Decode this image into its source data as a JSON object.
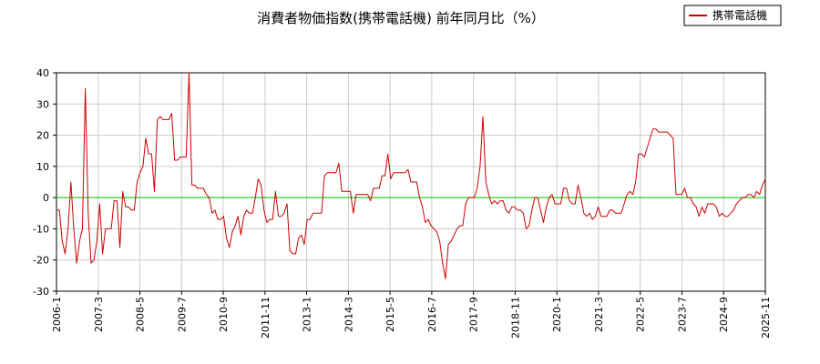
{
  "chart_data": {
    "type": "line",
    "title": "消費者物価指数(携帯電話機) 前年同月比（%）",
    "xlabel": "",
    "ylabel": "",
    "ylim": [
      -30,
      40
    ],
    "yticks": [
      40,
      30,
      20,
      10,
      0,
      -10,
      -20,
      -30
    ],
    "xtick_labels": [
      "2006-1",
      "2007-3",
      "2008-5",
      "2009-7",
      "2010-9",
      "2011-11",
      "2013-1",
      "2014-3",
      "2015-5",
      "2016-7",
      "2017-9",
      "2018-11",
      "2020-1",
      "2021-3",
      "2022-5",
      "2023-7",
      "2024-9",
      "2025-11"
    ],
    "grid": true,
    "legend_position": "top-right",
    "zero_line_color": "#00cc00",
    "series": [
      {
        "name": "携帯電話機",
        "color": "#cc0000",
        "x_start": "2006-1",
        "values": [
          -4,
          -4,
          -14,
          -18,
          -10,
          5,
          -10,
          -21,
          -14,
          -10,
          35,
          -5,
          -21,
          -20,
          -14,
          -2,
          -18,
          -10,
          -10,
          -10,
          -1,
          -1,
          -16,
          2,
          -3,
          -3,
          -4,
          -4,
          5,
          8,
          10,
          19,
          14,
          14,
          2,
          25,
          26,
          25,
          25,
          25,
          27,
          12,
          12,
          13,
          13,
          13,
          40,
          4,
          4,
          3,
          3,
          3,
          1,
          0,
          -5,
          -4,
          -7,
          -7,
          -6,
          -13,
          -16,
          -11,
          -9,
          -6,
          -12,
          -6,
          -4,
          -5,
          -5,
          0,
          6,
          4,
          -4,
          -8,
          -7,
          -7,
          2,
          -6,
          -6,
          -5,
          -2,
          -17,
          -18,
          -18,
          -13,
          -12,
          -15,
          -7,
          -7,
          -5,
          -5,
          -5,
          -5,
          7,
          8,
          8,
          8,
          8,
          11,
          2,
          2,
          2,
          2,
          -5,
          1,
          1,
          1,
          1,
          1,
          -1,
          3,
          3,
          3,
          7,
          7,
          14,
          6,
          8,
          8,
          8,
          8,
          8,
          9,
          5,
          5,
          5,
          0,
          -3,
          -8,
          -7,
          -9,
          -10,
          -11,
          -14,
          -21,
          -26,
          -15,
          -14,
          -12,
          -10,
          -9,
          -9,
          -2,
          0,
          0,
          0,
          3,
          10,
          26,
          5,
          1,
          -2,
          -1,
          -2,
          -1,
          -1,
          -4,
          -5,
          -3,
          -3,
          -4,
          -4,
          -5,
          -10,
          -9,
          -4,
          0,
          0,
          -4,
          -8,
          -3,
          0,
          1,
          -2,
          -2,
          -2,
          3,
          3,
          -1,
          -2,
          -2,
          4,
          0,
          -5,
          -6,
          -5,
          -7,
          -6,
          -3,
          -6,
          -6,
          -6,
          -4,
          -4,
          -5,
          -5,
          -5,
          -2,
          1,
          2,
          1,
          5,
          14,
          14,
          13,
          16,
          19,
          22,
          22,
          21,
          21,
          21,
          21,
          20,
          19,
          1,
          1,
          1,
          3,
          0,
          0,
          -2,
          -3,
          -6,
          -3,
          -5,
          -2,
          -2,
          -2,
          -3,
          -6,
          -5,
          -6,
          -6,
          -5,
          -4,
          -2,
          -1,
          0,
          0,
          1,
          1,
          0,
          2,
          1,
          4,
          6
        ]
      }
    ]
  }
}
